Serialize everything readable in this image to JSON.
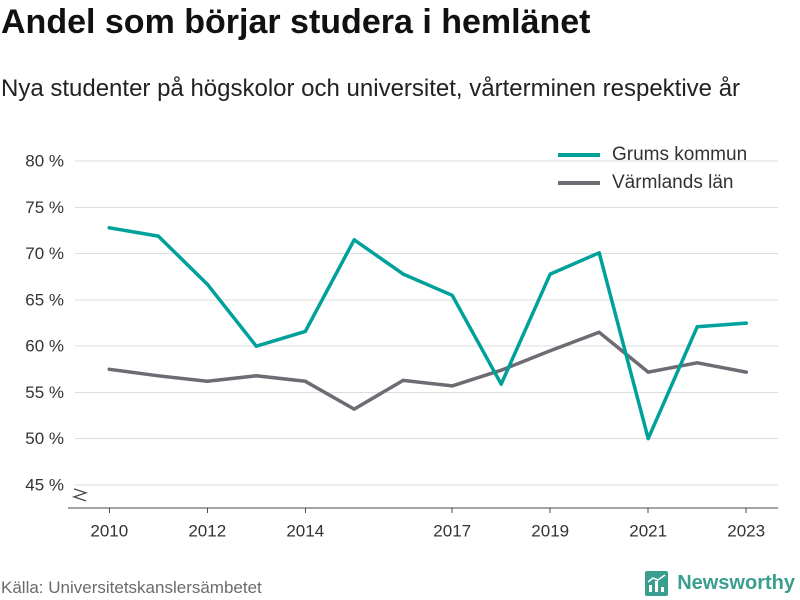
{
  "chart_data": {
    "type": "line",
    "title": "Andel som börjar studera i hemlänet",
    "subtitle": "Nya studenter på högskolor och universitet, vårterminen respektive år",
    "x": [
      2010,
      2011,
      2012,
      2013,
      2014,
      2015,
      2016,
      2017,
      2018,
      2019,
      2020,
      2021,
      2022,
      2023
    ],
    "xticks": [
      2010,
      2012,
      2014,
      2017,
      2019,
      2021,
      2023
    ],
    "xtick_labels": [
      "2010",
      "2012",
      "2014",
      "2017",
      "2019",
      "2021",
      "2023"
    ],
    "xlim": [
      2009.3,
      2023.65
    ],
    "yticks": [
      45,
      50,
      55,
      60,
      65,
      70,
      75,
      80
    ],
    "ytick_labels": [
      "45 %",
      "50 %",
      "55 %",
      "60 %",
      "65 %",
      "70 %",
      "75 %",
      "80 %"
    ],
    "ylim": [
      42.5,
      81
    ],
    "y_unit": "%",
    "y_axis_break": true,
    "grid": true,
    "legend_position": "top-right",
    "series": [
      {
        "name": "Grums kommun",
        "color": "#00a19a",
        "values": [
          72.8,
          71.9,
          66.7,
          60.0,
          61.6,
          71.5,
          67.8,
          65.5,
          55.9,
          67.8,
          70.1,
          50.0,
          62.1,
          62.5
        ]
      },
      {
        "name": "Värmlands län",
        "color": "#6d6c73",
        "values": [
          57.5,
          56.8,
          56.2,
          56.8,
          56.2,
          53.2,
          56.3,
          55.7,
          57.4,
          59.5,
          61.5,
          57.2,
          58.2,
          57.2
        ]
      }
    ]
  },
  "source": "Källa: Universitetskanslersämbetet",
  "brand": {
    "name": "Newsworthy",
    "color": "#3a9e8f",
    "icon": "bar-chart-icon"
  }
}
